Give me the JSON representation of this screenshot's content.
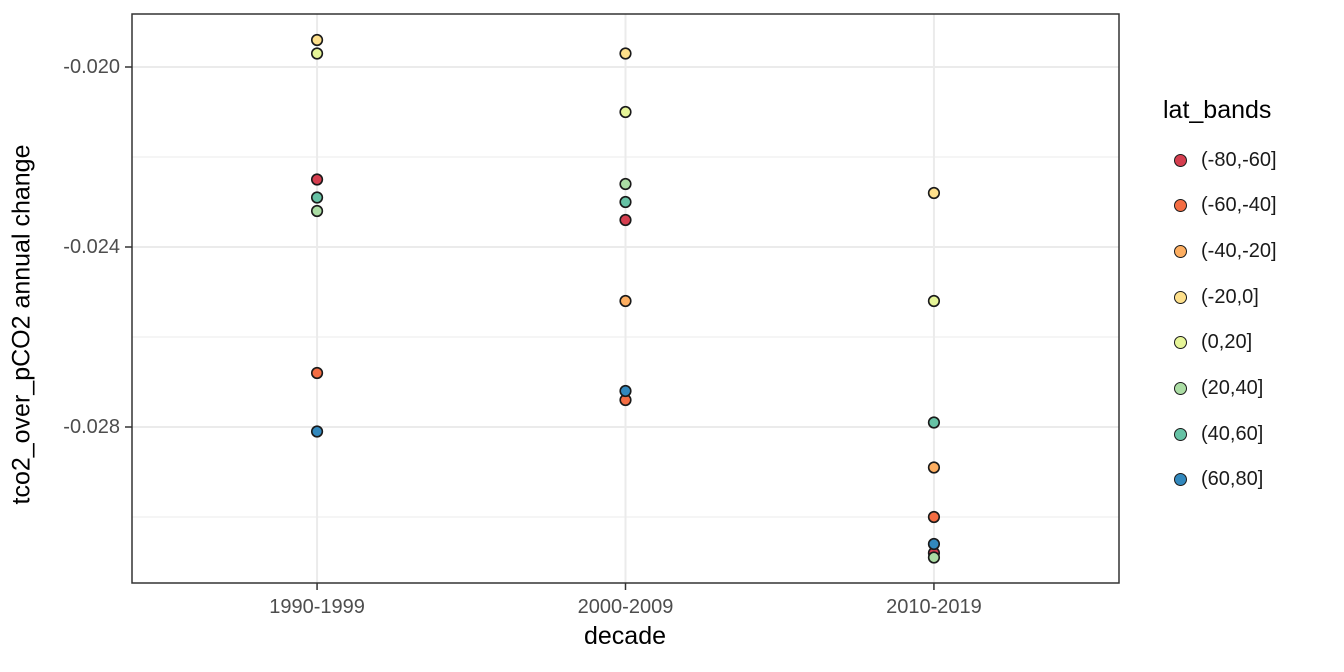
{
  "chart_data": {
    "type": "scatter",
    "title": "",
    "xlabel": "decade",
    "ylabel": "tco2_over_pCO2 annual change",
    "categories": [
      "1990-1999",
      "2000-2009",
      "2010-2019"
    ],
    "y_ticks": [
      -0.02,
      -0.024,
      -0.028
    ],
    "y_tick_labels": [
      "-0.020",
      "-0.024",
      "-0.028"
    ],
    "y_minor_gridlines": [
      -0.022,
      -0.026,
      -0.03
    ],
    "ylim": [
      -0.0315,
      -0.0188
    ],
    "grid": true,
    "legend": {
      "title": "lat_bands",
      "position": "right"
    },
    "series": [
      {
        "name": "(-80,-60]",
        "color": "#D53E4F",
        "values": [
          -0.0225,
          -0.0234,
          -0.0308
        ]
      },
      {
        "name": "(-60,-40]",
        "color": "#F46D43",
        "values": [
          -0.0268,
          -0.0274,
          -0.03
        ]
      },
      {
        "name": "(-40,-20]",
        "color": "#FDAE61",
        "values": [
          null,
          -0.0252,
          -0.0289
        ]
      },
      {
        "name": "(-20,0]",
        "color": "#FEE08B",
        "values": [
          -0.0194,
          -0.0197,
          -0.0228
        ]
      },
      {
        "name": "(0,20]",
        "color": "#E6F598",
        "values": [
          -0.0197,
          -0.021,
          -0.0252
        ]
      },
      {
        "name": "(20,40]",
        "color": "#ABDDA4",
        "values": [
          -0.0232,
          -0.0226,
          -0.0309
        ]
      },
      {
        "name": "(40,60]",
        "color": "#66C2A5",
        "values": [
          -0.0229,
          -0.023,
          -0.0279
        ]
      },
      {
        "name": "(60,80]",
        "color": "#3288BD",
        "values": [
          -0.0281,
          -0.0272,
          -0.0306
        ]
      }
    ],
    "point_style": {
      "shape": "circle",
      "outline": "#1a1a1a"
    }
  },
  "style_colors": {
    "panel_background": "#ffffff",
    "grid_major": "#ebebeb",
    "grid_minor": "#ebebeb",
    "panel_border": "#333333",
    "tick_mark": "#333333",
    "tick_text": "#4d4d4d",
    "title_text": "#000000"
  }
}
